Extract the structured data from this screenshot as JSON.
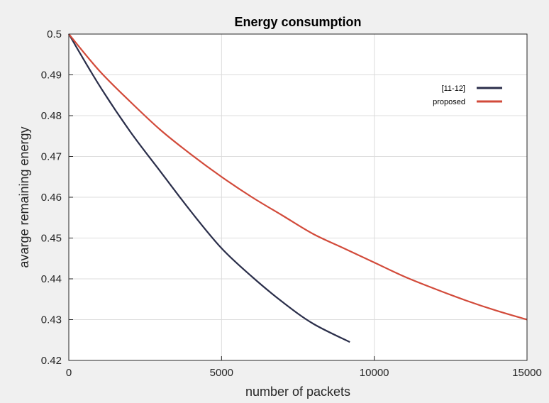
{
  "chart_data": {
    "type": "line",
    "title": "Energy consumption",
    "xlabel": "number of packets",
    "ylabel": "avarge remaining energy",
    "xlim": [
      0,
      15000
    ],
    "ylim": [
      0.42,
      0.5
    ],
    "xticks": [
      0,
      5000,
      10000,
      15000
    ],
    "yticks": [
      0.42,
      0.43,
      0.44,
      0.45,
      0.46,
      0.47,
      0.48,
      0.49,
      0.5
    ],
    "xtick_labels": [
      "0",
      "5000",
      "10000",
      "15000"
    ],
    "ytick_labels": [
      "0.42",
      "0.43",
      "0.44",
      "0.45",
      "0.46",
      "0.47",
      "0.48",
      "0.49",
      "0.5"
    ],
    "grid": true,
    "legend_position": "top-right",
    "series": [
      {
        "name": "[11-12]",
        "color": "#2a2e4a",
        "x": [
          0,
          1000,
          2000,
          3000,
          4000,
          5000,
          6000,
          7000,
          8000,
          9200
        ],
        "y": [
          0.5,
          0.4874,
          0.4762,
          0.4663,
          0.4565,
          0.4475,
          0.4405,
          0.4343,
          0.429,
          0.4245
        ]
      },
      {
        "name": "proposed",
        "color": "#d24a3a",
        "x": [
          0,
          1000,
          2000,
          3000,
          4000,
          5000,
          6000,
          7000,
          8000,
          9000,
          10000,
          11000,
          12000,
          13000,
          14000,
          15000
        ],
        "y": [
          0.5,
          0.491,
          0.4835,
          0.4765,
          0.4705,
          0.465,
          0.46,
          0.4555,
          0.451,
          0.4475,
          0.444,
          0.4405,
          0.4375,
          0.4347,
          0.4322,
          0.43
        ]
      }
    ]
  }
}
